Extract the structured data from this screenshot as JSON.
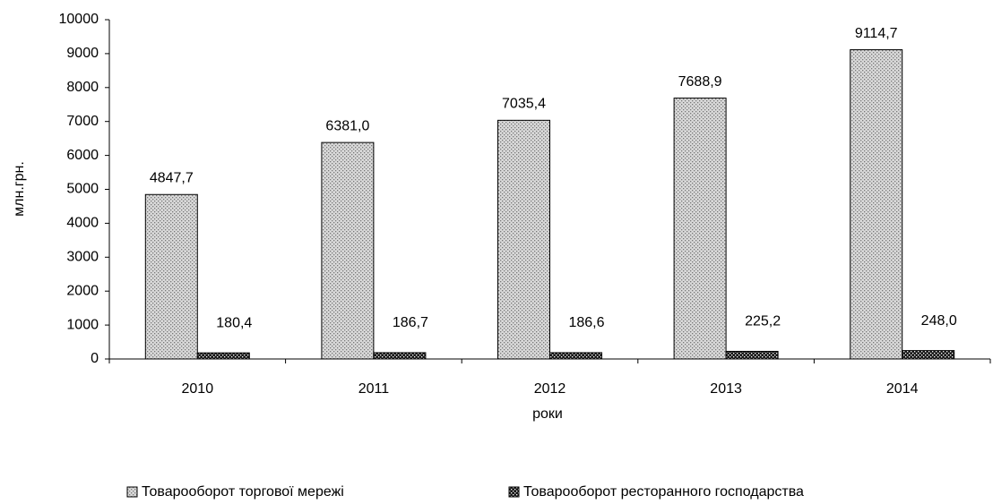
{
  "chart_data": {
    "type": "bar",
    "categories": [
      "2010",
      "2011",
      "2012",
      "2013",
      "2014"
    ],
    "series": [
      {
        "name": "Товарооборот торгової мережі",
        "color": "#d9d9d9",
        "values": [
          4847.7,
          6381.0,
          7035.4,
          7688.9,
          9114.7
        ],
        "value_labels": [
          "4847,7",
          "6381,0",
          "7035,4",
          "7688,9",
          "9114,7"
        ]
      },
      {
        "name": "Товарооборот ресторанного господарства",
        "color": "#1a1a1a",
        "values": [
          180.4,
          186.7,
          186.6,
          225.2,
          248.0
        ],
        "value_labels": [
          "180,4",
          "186,7",
          "186,6",
          "225,2",
          "248,0"
        ]
      }
    ],
    "xlabel": "роки",
    "ylabel": "млн.грн.",
    "ylim": [
      0,
      10000
    ],
    "yticks": [
      0,
      1000,
      2000,
      3000,
      4000,
      5000,
      6000,
      7000,
      8000,
      9000,
      10000
    ],
    "grid": false,
    "legend": "bottom"
  }
}
